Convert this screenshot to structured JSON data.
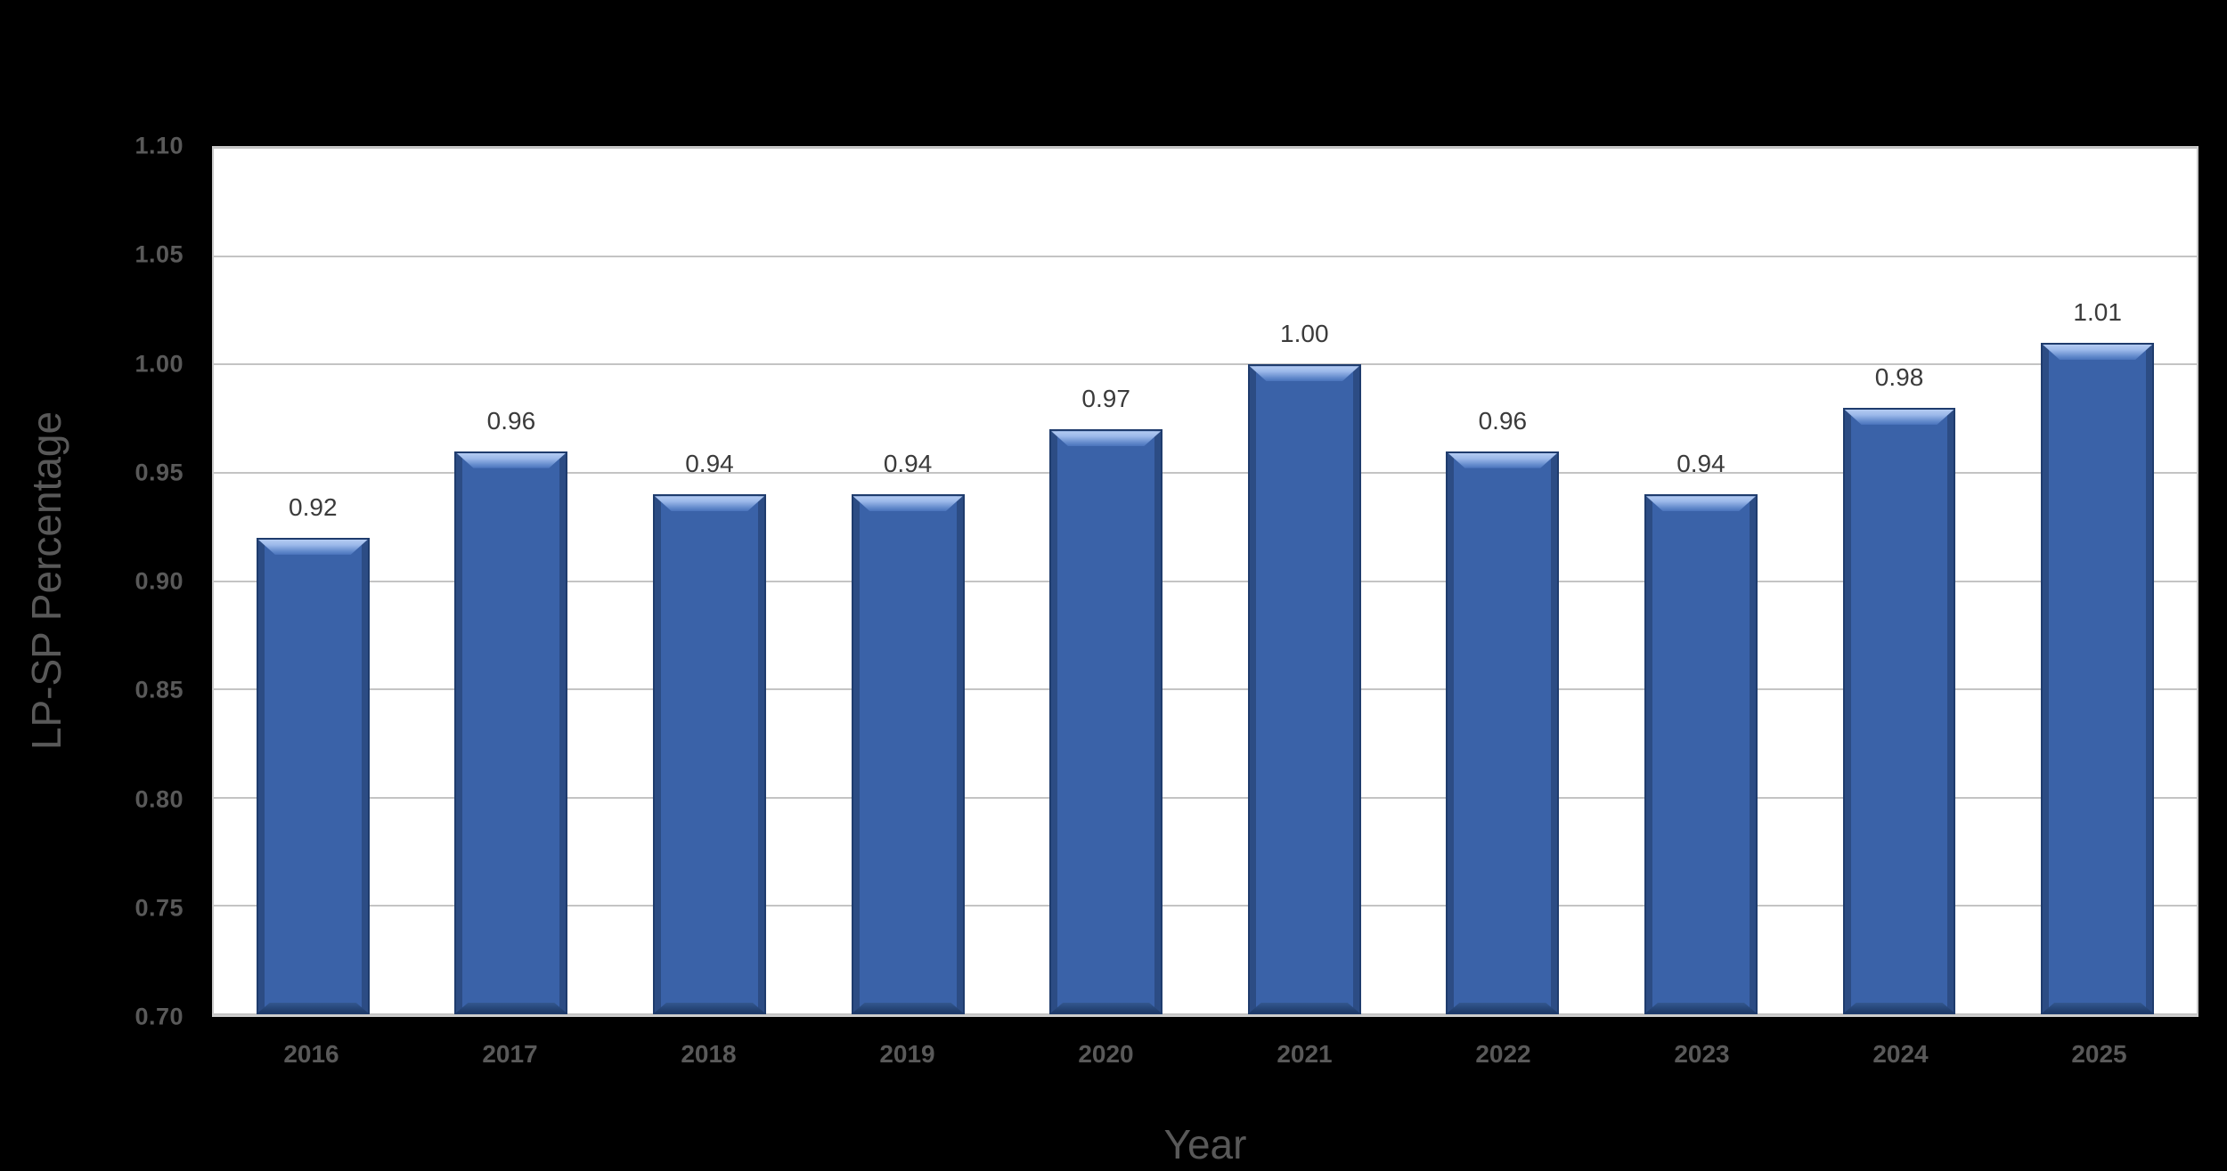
{
  "chart_data": {
    "type": "bar",
    "title": "",
    "categories": [
      "2016",
      "2017",
      "2018",
      "2019",
      "2020",
      "2021",
      "2022",
      "2023",
      "2024",
      "2025"
    ],
    "values": [
      0.92,
      0.96,
      0.94,
      0.94,
      0.97,
      1.0,
      0.96,
      0.94,
      0.98,
      1.01
    ],
    "data_labels": [
      "0.92",
      "0.96",
      "0.94",
      "0.94",
      "0.97",
      "1.00",
      "0.96",
      "0.94",
      "0.98",
      "1.01"
    ],
    "xlabel": "Year",
    "ylabel": "LP-SP Percentage",
    "ylim": [
      0.7,
      1.1
    ],
    "ytick_step": 0.05,
    "yticks": [
      "1.10",
      "1.05",
      "1.00",
      "0.95",
      "0.90",
      "0.85",
      "0.80",
      "0.75",
      "0.70"
    ],
    "grid": true,
    "legend": "none",
    "colors": {
      "page_background": "#000000",
      "plot_background": "#FFFFFF",
      "gridline": "#C4C4C4",
      "bar_fill": "#3A62A8",
      "bar_border": "#1F3C6D",
      "bar_bevel_highlight": "#B4CBF2",
      "bar_bevel_shadow": "#1E3A68",
      "tick_label": "#595959",
      "axis_title": "#595959",
      "data_label": "#3B3B3B"
    }
  }
}
